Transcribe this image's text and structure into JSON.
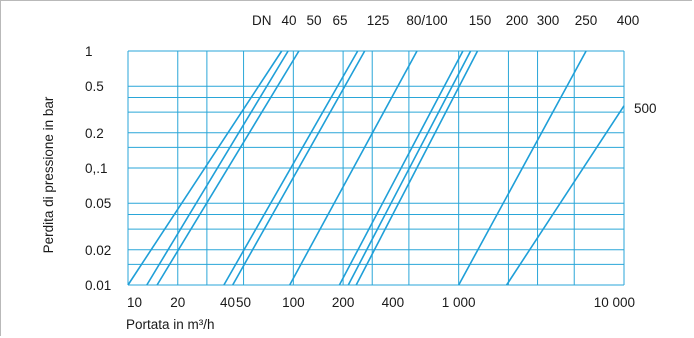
{
  "chart_data": {
    "type": "line",
    "title": "",
    "xlabel": "Portata in m³/h",
    "ylabel": "Perdita di pressione in bar",
    "x_scale": "log",
    "y_scale": "log",
    "xlim": [
      10,
      10000
    ],
    "ylim": [
      0.01,
      1
    ],
    "grid": true,
    "x_ticks": [
      10,
      20,
      40,
      50,
      100,
      200,
      400,
      1000,
      10000
    ],
    "x_tick_labels": [
      "10",
      "20",
      "40",
      "50",
      "100",
      "200",
      "400",
      "1 000",
      "10 000"
    ],
    "y_ticks": [
      0.01,
      0.02,
      0.05,
      0.1,
      0.2,
      0.5,
      1
    ],
    "y_tick_labels": [
      "0.01",
      "0.02",
      "0.05",
      "0,.1",
      "0.2",
      "0.5",
      "1"
    ],
    "series_prefix": "DN",
    "series": [
      {
        "name": "40",
        "x": [
          10,
          85
        ],
        "y": [
          0.01,
          1
        ]
      },
      {
        "name": "50",
        "x": [
          13,
          93
        ],
        "y": [
          0.01,
          1
        ]
      },
      {
        "name": "65",
        "x": [
          15,
          108
        ],
        "y": [
          0.01,
          1
        ]
      },
      {
        "name": "125",
        "x": [
          38,
          245
        ],
        "y": [
          0.01,
          1
        ]
      },
      {
        "name": "80/100",
        "x": [
          43,
          270
        ],
        "y": [
          0.01,
          1
        ]
      },
      {
        "name": "150",
        "x": [
          95,
          560
        ],
        "y": [
          0.01,
          1
        ]
      },
      {
        "name": "200",
        "x": [
          190,
          1060
        ],
        "y": [
          0.01,
          1
        ]
      },
      {
        "name": "300",
        "x": [
          215,
          1180
        ],
        "y": [
          0.01,
          1
        ]
      },
      {
        "name": "250",
        "x": [
          240,
          1300
        ],
        "y": [
          0.01,
          1
        ]
      },
      {
        "name": "400",
        "x": [
          1000,
          5900
        ],
        "y": [
          0.01,
          1
        ]
      },
      {
        "name": "500",
        "x": [
          1950,
          10000
        ],
        "y": [
          0.01,
          0.34
        ]
      }
    ]
  },
  "colors": {
    "grid": "#2aa6d8",
    "line": "#1f9fd8",
    "text": "#1a1a1a",
    "frame": "#b9b9b9"
  }
}
